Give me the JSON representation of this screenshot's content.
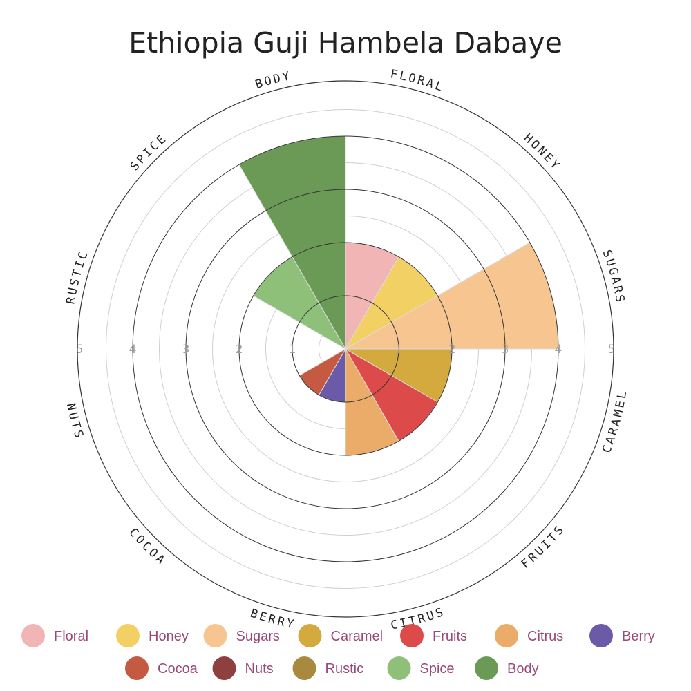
{
  "chart_data": {
    "type": "polar-area",
    "title": "Ethiopia Guji Hambela Dabaye",
    "rlim": [
      0,
      5
    ],
    "ticks": [
      "1",
      "2",
      "3",
      "4",
      "5"
    ],
    "grid": true,
    "legend_position": "bottom",
    "categories": [
      "Floral",
      "Honey",
      "Sugars",
      "Caramel",
      "Fruits",
      "Citrus",
      "Berry",
      "Cocoa",
      "Nuts",
      "Rustic",
      "Spice",
      "Body"
    ],
    "axis_labels": [
      "FLORAL",
      "HONEY",
      "SUGARS",
      "CARAMEL",
      "FRUITS",
      "CITRUS",
      "BERRY",
      "COCOA",
      "NUTS",
      "RUSTIC",
      "SPICE",
      "BODY"
    ],
    "values": [
      2,
      2,
      4,
      2,
      2,
      2,
      1,
      1,
      0,
      0,
      2,
      4
    ],
    "colors": [
      "#f2b5b5",
      "#f2d063",
      "#f6c590",
      "#d4a93e",
      "#dd4a4a",
      "#ebac6a",
      "#6a5aa8",
      "#c45a42",
      "#8e4040",
      "#a8893e",
      "#8fc07a",
      "#6a9a56"
    ]
  }
}
